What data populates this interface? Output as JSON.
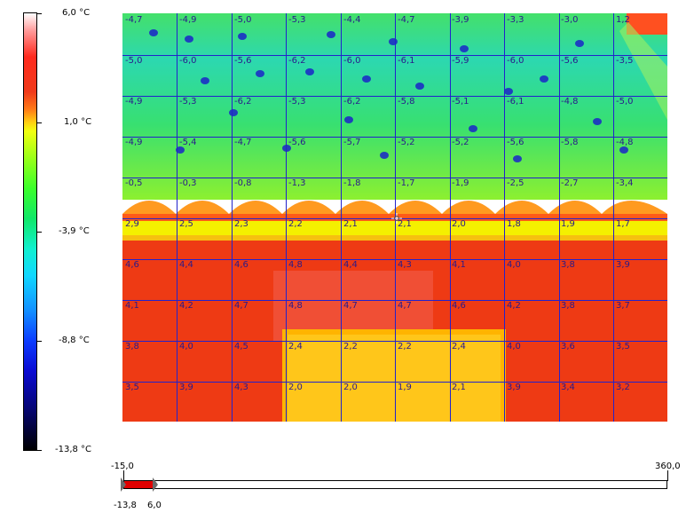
{
  "palette": {
    "max_label": "6,0 °C",
    "mid1_label": "1,0 °C",
    "mid2_label": "-3,9 °C",
    "mid3_label": "-8,8 °C",
    "min_label": "-13,8 °C"
  },
  "grid": {
    "rows": [
      [
        "-4,7",
        "-4,9",
        "-5,0",
        "-5,3",
        "-4,4",
        "-4,7",
        "-3,9",
        "-3,3",
        "-3,0",
        "1,2"
      ],
      [
        "-5,0",
        "-6,0",
        "-5,6",
        "-6,2",
        "-6,0",
        "-6,1",
        "-5,9",
        "-6,0",
        "-5,6",
        "-3,5"
      ],
      [
        "-4,9",
        "-5,3",
        "-6,2",
        "-5,3",
        "-6,2",
        "-5,8",
        "-5,1",
        "-6,1",
        "-4,8",
        "-5,0"
      ],
      [
        "-4,9",
        "-5,4",
        "-4,7",
        "-5,6",
        "-5,7",
        "-5,2",
        "-5,2",
        "-5,6",
        "-5,8",
        "-4,8"
      ],
      [
        "-0,5",
        "-0,3",
        "-0,8",
        "-1,3",
        "-1,8",
        "-1,7",
        "-1,9",
        "-2,5",
        "-2,7",
        "-3,4"
      ],
      [
        "2,9",
        "2,5",
        "2,3",
        "2,2",
        "2,1",
        "2,1",
        "2,0",
        "1,8",
        "1,9",
        "1,7"
      ],
      [
        "4,6",
        "4,4",
        "4,6",
        "4,8",
        "4,4",
        "4,3",
        "4,1",
        "4,0",
        "3,8",
        "3,9"
      ],
      [
        "4,1",
        "4,2",
        "4,7",
        "4,8",
        "4,7",
        "4,7",
        "4,6",
        "4,2",
        "3,8",
        "3,7"
      ],
      [
        "3,8",
        "4,0",
        "4,5",
        "2,4",
        "2,2",
        "2,2",
        "2,4",
        "4,0",
        "3,6",
        "3,5"
      ],
      [
        "3,5",
        "3,9",
        "4,3",
        "2,0",
        "2,0",
        "1,9",
        "2,1",
        "3,9",
        "3,4",
        "3,2"
      ]
    ]
  },
  "slider": {
    "range_min_label": "-15,0",
    "range_max_label": "360,0",
    "low_label": "-13,8",
    "high_label": "6,0"
  }
}
